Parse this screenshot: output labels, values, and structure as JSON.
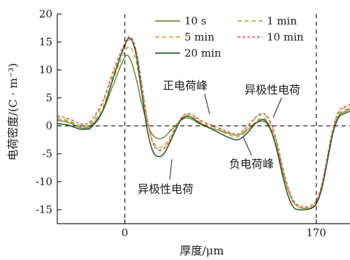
{
  "chart_data": {
    "type": "line",
    "xlabel": "厚度/μm",
    "ylabel": "电荷密度/(C · m⁻³)",
    "xlim": [
      -60,
      200
    ],
    "ylim": [
      -17.5,
      20
    ],
    "x_ticks": [
      {
        "value": 0,
        "label": "0"
      },
      {
        "value": 170,
        "label": "170"
      }
    ],
    "y_ticks": [
      {
        "value": 20,
        "label": "20"
      },
      {
        "value": 15,
        "label": "15"
      },
      {
        "value": 10,
        "label": "10"
      },
      {
        "value": 5,
        "label": "5"
      },
      {
        "value": 0,
        "label": "0"
      },
      {
        "value": -5,
        "label": "-5"
      },
      {
        "value": -10,
        "label": "-10"
      },
      {
        "value": -15,
        "label": "-15"
      }
    ],
    "reference_lines": {
      "vertical": [
        0,
        170
      ],
      "horizontal": [
        0
      ]
    },
    "legend_position": "top-right",
    "grid": false,
    "x": [
      -60,
      -50,
      -40,
      -35,
      -30,
      -20,
      -10,
      0,
      5,
      10,
      15,
      20,
      25,
      30,
      35,
      40,
      45,
      50,
      55,
      60,
      65,
      70,
      75,
      80,
      85,
      90,
      95,
      100,
      105,
      110,
      115,
      120,
      125,
      130,
      135,
      140,
      145,
      150,
      155,
      160,
      165,
      170,
      175,
      180,
      185,
      190,
      195,
      200
    ],
    "series": [
      {
        "name": "10 s",
        "color": "#6c8c3c",
        "dash": "solid",
        "values": [
          1.0,
          0.6,
          -0.3,
          -0.4,
          0.0,
          2.5,
          7.5,
          12.3,
          11.8,
          8.5,
          4.0,
          0.3,
          -1.7,
          -2.3,
          -2.0,
          -1.0,
          0.0,
          1.0,
          1.4,
          1.1,
          0.5,
          0.0,
          -0.3,
          -0.6,
          -0.9,
          -1.2,
          -1.5,
          -1.7,
          -1.3,
          -0.5,
          0.3,
          0.8,
          0.6,
          -1.0,
          -4.0,
          -8.0,
          -11.5,
          -13.8,
          -14.5,
          -14.8,
          -14.7,
          -13.9,
          -11.0,
          -6.0,
          -1.0,
          1.8,
          2.5,
          3.0
        ]
      },
      {
        "name": "1 min",
        "color": "#a8b24a",
        "dash": "6 4",
        "values": [
          1.2,
          0.8,
          -0.1,
          -0.2,
          0.3,
          3.0,
          8.5,
          13.3,
          14.0,
          11.5,
          6.0,
          0.5,
          -2.8,
          -3.8,
          -3.5,
          -2.0,
          -0.3,
          1.2,
          1.8,
          1.5,
          0.8,
          0.2,
          -0.2,
          -0.6,
          -1.0,
          -1.4,
          -1.8,
          -2.0,
          -1.5,
          -0.5,
          0.5,
          1.3,
          1.2,
          -0.4,
          -3.5,
          -7.8,
          -11.5,
          -13.8,
          -14.6,
          -14.8,
          -14.6,
          -13.8,
          -10.8,
          -5.8,
          -0.8,
          2.0,
          2.8,
          3.2
        ]
      },
      {
        "name": "5 min",
        "color": "#e8a640",
        "dash": "6 4",
        "values": [
          1.5,
          1.0,
          0.1,
          0.0,
          0.6,
          3.8,
          9.5,
          14.2,
          15.4,
          13.2,
          7.2,
          1.0,
          -3.2,
          -4.4,
          -4.1,
          -2.6,
          -0.6,
          1.3,
          2.0,
          1.8,
          1.1,
          0.5,
          0.1,
          -0.3,
          -0.7,
          -1.1,
          -1.5,
          -1.7,
          -1.1,
          0.0,
          1.1,
          1.9,
          1.8,
          0.2,
          -3.0,
          -7.4,
          -11.2,
          -13.6,
          -14.5,
          -14.7,
          -14.5,
          -13.6,
          -10.6,
          -5.6,
          -0.5,
          2.4,
          3.2,
          3.6
        ]
      },
      {
        "name": "10 min",
        "color": "#e2605a",
        "dash": "4 3",
        "values": [
          1.8,
          1.3,
          0.4,
          0.3,
          0.9,
          4.2,
          10.0,
          14.8,
          15.9,
          13.6,
          7.6,
          1.2,
          -3.0,
          -4.3,
          -4.0,
          -2.5,
          -0.5,
          1.4,
          2.2,
          2.0,
          1.3,
          0.7,
          0.3,
          -0.1,
          -0.5,
          -0.9,
          -1.3,
          -1.5,
          -0.9,
          0.2,
          1.3,
          2.1,
          2.0,
          0.4,
          -2.8,
          -7.2,
          -11.0,
          -13.4,
          -14.3,
          -14.5,
          -14.3,
          -13.4,
          -10.4,
          -5.4,
          -0.3,
          2.6,
          3.4,
          3.8
        ]
      },
      {
        "name": "20 min",
        "color": "#2b5a2a",
        "dash": "solid",
        "values": [
          0.4,
          0.1,
          -0.6,
          -0.6,
          -0.3,
          2.5,
          8.8,
          14.5,
          15.6,
          12.8,
          6.0,
          -0.8,
          -4.6,
          -5.5,
          -4.9,
          -3.0,
          -0.8,
          1.1,
          1.7,
          1.4,
          0.7,
          0.1,
          -0.4,
          -0.9,
          -1.4,
          -1.9,
          -2.3,
          -2.5,
          -2.0,
          -1.0,
          0.2,
          1.0,
          0.9,
          -0.9,
          -4.3,
          -8.8,
          -12.5,
          -14.6,
          -15.0,
          -15.0,
          -14.8,
          -14.0,
          -11.2,
          -6.2,
          -1.2,
          1.5,
          2.2,
          2.6
        ]
      }
    ],
    "annotations": [
      {
        "text": "正电荷峰",
        "x": 65,
        "y": 1.5
      },
      {
        "text": "异极性电荷",
        "x": 140,
        "y": 1.5
      },
      {
        "text": "负电荷峰",
        "x": 102,
        "y": -1.9
      },
      {
        "text": "异极性电荷",
        "x": 37,
        "y": -5.5
      }
    ]
  }
}
